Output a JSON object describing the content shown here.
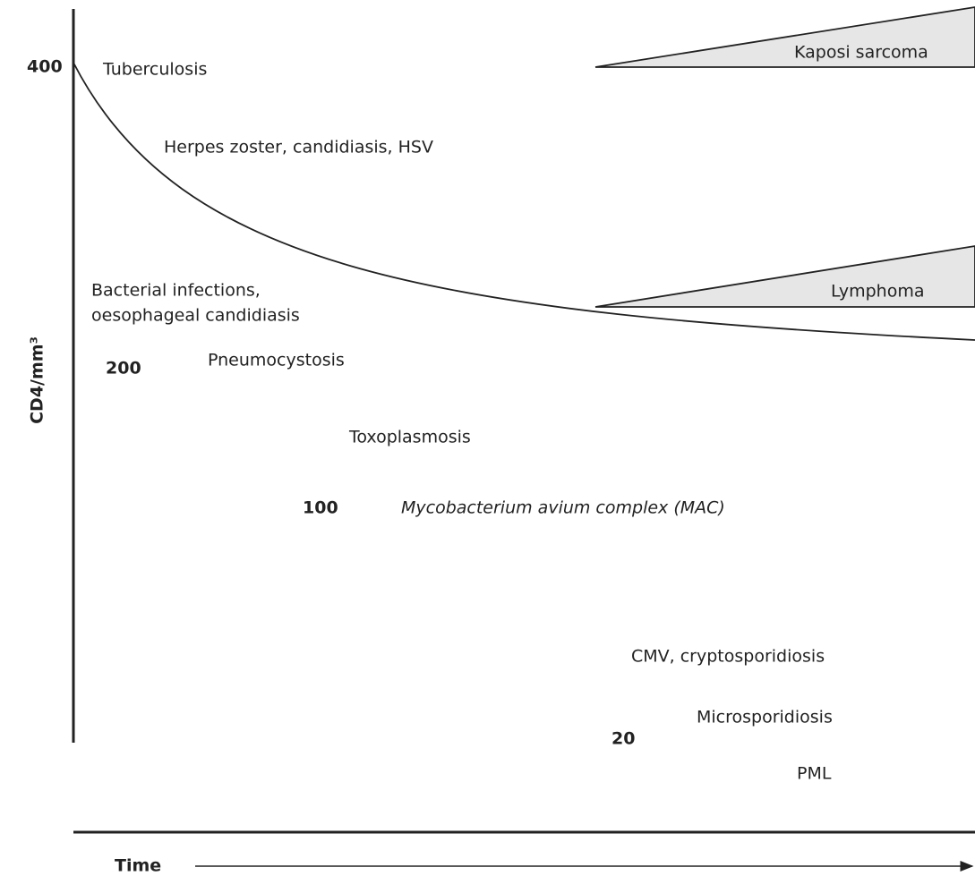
{
  "axis": {
    "y_label": "CD4/mm³",
    "x_label": "Time"
  },
  "levels": [
    "400",
    "200",
    "100",
    "20"
  ],
  "conditions": [
    "Tuberculosis",
    "Herpes zoster, candidiasis, HSV",
    "Bacterial infections,",
    "oesophageal candidiasis",
    "Pneumocystosis",
    "Toxoplasmosis",
    "Mycobacterium avium complex (MAC)",
    "CMV, cryptosporidiosis",
    "Microsporidiosis",
    "PML"
  ],
  "bands": [
    "Kaposi sarcoma",
    "Lymphoma"
  ]
}
